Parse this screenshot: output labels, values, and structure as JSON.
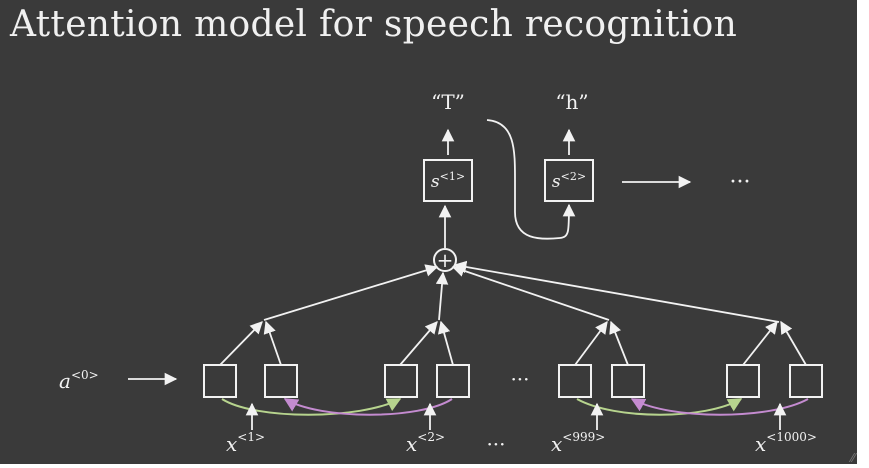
{
  "slide": {
    "title": "Attention model for speech recognition"
  },
  "decoder": {
    "outputs": [
      "“T”",
      "“h”"
    ],
    "states": [
      {
        "base": "s",
        "sup": "<1>"
      },
      {
        "base": "s",
        "sup": "<2>"
      }
    ],
    "continuation": "···"
  },
  "attention": {
    "sum_symbol": "+"
  },
  "encoder": {
    "initial_activation": {
      "base": "a",
      "sup": "<0>"
    },
    "gap_ellipsis": "···",
    "inputs": [
      {
        "base": "x",
        "sup": "<1>"
      },
      {
        "base": "x",
        "sup": "<2>"
      },
      {
        "base": "x",
        "sup": "<999>"
      },
      {
        "base": "x",
        "sup": "<1000>"
      }
    ],
    "input_ellipsis": "···"
  },
  "colors": {
    "background": "#3a3a3a",
    "foreground": "#f2f2f2",
    "forward_arrow": "#b7d48e",
    "backward_arrow": "#c48bd0"
  }
}
